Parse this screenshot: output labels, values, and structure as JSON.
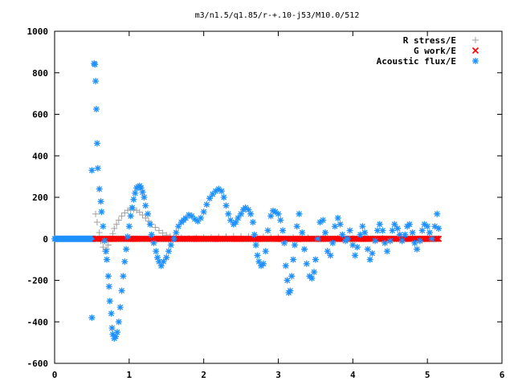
{
  "chart_data": {
    "type": "scatter",
    "title": "m3/n1.5/q1.85/r-+.10-j53/M10.0/512",
    "xlim": [
      0,
      6
    ],
    "ylim": [
      -600,
      1000
    ],
    "x_ticks": [
      "0",
      "1",
      "2",
      "3",
      "4",
      "5",
      "6"
    ],
    "y_ticks": [
      "-600",
      "-400",
      "-200",
      "0",
      "200",
      "400",
      "600",
      "800",
      "1000"
    ],
    "grid": false,
    "legend_position": "top-right",
    "series": [
      {
        "name": "R stress/E",
        "marker": "+",
        "color": "#a0a0a0",
        "points": [
          [
            0.55,
            120
          ],
          [
            0.57,
            80
          ],
          [
            0.6,
            30
          ],
          [
            0.62,
            -10
          ],
          [
            0.65,
            -40
          ],
          [
            0.68,
            -60
          ],
          [
            0.7,
            -50
          ],
          [
            0.72,
            -30
          ],
          [
            0.75,
            0
          ],
          [
            0.78,
            25
          ],
          [
            0.8,
            50
          ],
          [
            0.83,
            70
          ],
          [
            0.86,
            90
          ],
          [
            0.9,
            110
          ],
          [
            0.94,
            125
          ],
          [
            0.98,
            137
          ],
          [
            1.02,
            143
          ],
          [
            1.06,
            142
          ],
          [
            1.1,
            137
          ],
          [
            1.14,
            128
          ],
          [
            1.18,
            115
          ],
          [
            1.22,
            100
          ],
          [
            1.26,
            85
          ],
          [
            1.3,
            70
          ],
          [
            1.35,
            55
          ],
          [
            1.4,
            40
          ],
          [
            1.45,
            28
          ],
          [
            1.5,
            18
          ],
          [
            1.55,
            12
          ],
          [
            1.6,
            8
          ],
          [
            1.7,
            5
          ],
          [
            1.8,
            3
          ],
          [
            1.9,
            5
          ],
          [
            2.0,
            6
          ],
          [
            2.1,
            7
          ],
          [
            2.2,
            9
          ],
          [
            2.3,
            11
          ],
          [
            2.4,
            12
          ],
          [
            2.5,
            12
          ],
          [
            2.6,
            11
          ],
          [
            2.7,
            10
          ],
          [
            2.8,
            9
          ],
          [
            2.9,
            8
          ],
          [
            3.0,
            8
          ],
          [
            3.2,
            7
          ],
          [
            3.4,
            6
          ],
          [
            3.6,
            5
          ],
          [
            3.8,
            4
          ],
          [
            4.0,
            4
          ],
          [
            4.2,
            3
          ],
          [
            4.4,
            3
          ],
          [
            4.6,
            2
          ],
          [
            4.8,
            2
          ],
          [
            5.0,
            2
          ],
          [
            5.15,
            2
          ]
        ]
      },
      {
        "name": "G work/E",
        "marker": "x",
        "color": "#ff0000",
        "x_range": [
          0.55,
          5.15
        ],
        "step": 0.02,
        "y_constant": 0
      },
      {
        "name": "Acoustic flux/E",
        "marker": "*",
        "color": "#1e90ff",
        "dense_zero_x_range": [
          0,
          0.55
        ],
        "points": [
          [
            0.5,
            -380
          ],
          [
            0.5,
            330
          ],
          [
            0.53,
            845
          ],
          [
            0.54,
            840
          ],
          [
            0.55,
            760
          ],
          [
            0.56,
            625
          ],
          [
            0.57,
            460
          ],
          [
            0.58,
            340
          ],
          [
            0.6,
            240
          ],
          [
            0.62,
            180
          ],
          [
            0.63,
            130
          ],
          [
            0.65,
            60
          ],
          [
            0.67,
            -10
          ],
          [
            0.69,
            -60
          ],
          [
            0.7,
            -100
          ],
          [
            0.72,
            -180
          ],
          [
            0.73,
            -230
          ],
          [
            0.74,
            -300
          ],
          [
            0.76,
            -360
          ],
          [
            0.77,
            -430
          ],
          [
            0.78,
            -460
          ],
          [
            0.8,
            -480
          ],
          [
            0.82,
            -470
          ],
          [
            0.84,
            -450
          ],
          [
            0.86,
            -400
          ],
          [
            0.88,
            -330
          ],
          [
            0.9,
            -250
          ],
          [
            0.92,
            -180
          ],
          [
            0.94,
            -110
          ],
          [
            0.96,
            -50
          ],
          [
            0.98,
            10
          ],
          [
            1.0,
            60
          ],
          [
            1.02,
            110
          ],
          [
            1.04,
            150
          ],
          [
            1.06,
            190
          ],
          [
            1.08,
            220
          ],
          [
            1.1,
            245
          ],
          [
            1.12,
            250
          ],
          [
            1.14,
            255
          ],
          [
            1.16,
            245
          ],
          [
            1.18,
            225
          ],
          [
            1.2,
            200
          ],
          [
            1.22,
            160
          ],
          [
            1.25,
            120
          ],
          [
            1.28,
            70
          ],
          [
            1.3,
            20
          ],
          [
            1.33,
            -20
          ],
          [
            1.36,
            -60
          ],
          [
            1.38,
            -90
          ],
          [
            1.4,
            -110
          ],
          [
            1.43,
            -130
          ],
          [
            1.46,
            -110
          ],
          [
            1.5,
            -90
          ],
          [
            1.53,
            -60
          ],
          [
            1.56,
            -30
          ],
          [
            1.6,
            0
          ],
          [
            1.63,
            30
          ],
          [
            1.66,
            60
          ],
          [
            1.7,
            80
          ],
          [
            1.73,
            90
          ],
          [
            1.76,
            100
          ],
          [
            1.8,
            115
          ],
          [
            1.84,
            110
          ],
          [
            1.88,
            95
          ],
          [
            1.92,
            85
          ],
          [
            1.96,
            100
          ],
          [
            2.0,
            130
          ],
          [
            2.04,
            165
          ],
          [
            2.08,
            195
          ],
          [
            2.12,
            215
          ],
          [
            2.16,
            230
          ],
          [
            2.2,
            240
          ],
          [
            2.24,
            230
          ],
          [
            2.27,
            200
          ],
          [
            2.3,
            160
          ],
          [
            2.33,
            120
          ],
          [
            2.36,
            90
          ],
          [
            2.4,
            70
          ],
          [
            2.43,
            80
          ],
          [
            2.46,
            100
          ],
          [
            2.5,
            120
          ],
          [
            2.53,
            140
          ],
          [
            2.56,
            150
          ],
          [
            2.6,
            140
          ],
          [
            2.63,
            120
          ],
          [
            2.66,
            80
          ],
          [
            2.68,
            20
          ],
          [
            2.7,
            -30
          ],
          [
            2.72,
            -80
          ],
          [
            2.74,
            -110
          ],
          [
            2.77,
            -130
          ],
          [
            2.8,
            -120
          ],
          [
            2.83,
            -60
          ],
          [
            2.86,
            40
          ],
          [
            2.9,
            110
          ],
          [
            2.93,
            135
          ],
          [
            2.96,
            130
          ],
          [
            3.0,
            120
          ],
          [
            3.03,
            90
          ],
          [
            3.06,
            40
          ],
          [
            3.08,
            -20
          ],
          [
            3.1,
            -130
          ],
          [
            3.12,
            -200
          ],
          [
            3.14,
            -260
          ],
          [
            3.16,
            -250
          ],
          [
            3.18,
            -180
          ],
          [
            3.2,
            -100
          ],
          [
            3.22,
            -30
          ],
          [
            3.25,
            60
          ],
          [
            3.28,
            120
          ],
          [
            3.32,
            30
          ],
          [
            3.35,
            -50
          ],
          [
            3.38,
            -120
          ],
          [
            3.42,
            -180
          ],
          [
            3.45,
            -190
          ],
          [
            3.48,
            -160
          ],
          [
            3.5,
            -100
          ],
          [
            3.53,
            0
          ],
          [
            3.56,
            80
          ],
          [
            3.6,
            90
          ],
          [
            3.63,
            30
          ],
          [
            3.66,
            -60
          ],
          [
            3.7,
            -80
          ],
          [
            3.73,
            -20
          ],
          [
            3.76,
            60
          ],
          [
            3.8,
            100
          ],
          [
            3.83,
            70
          ],
          [
            3.86,
            20
          ],
          [
            3.9,
            -10
          ],
          [
            3.93,
            0
          ],
          [
            3.96,
            40
          ],
          [
            4.0,
            -30
          ],
          [
            4.03,
            -80
          ],
          [
            4.06,
            -40
          ],
          [
            4.1,
            20
          ],
          [
            4.13,
            60
          ],
          [
            4.16,
            30
          ],
          [
            4.2,
            -50
          ],
          [
            4.23,
            -100
          ],
          [
            4.26,
            -70
          ],
          [
            4.3,
            -10
          ],
          [
            4.33,
            40
          ],
          [
            4.36,
            70
          ],
          [
            4.4,
            40
          ],
          [
            4.43,
            -20
          ],
          [
            4.46,
            -60
          ],
          [
            4.5,
            -10
          ],
          [
            4.53,
            40
          ],
          [
            4.56,
            70
          ],
          [
            4.6,
            50
          ],
          [
            4.63,
            20
          ],
          [
            4.66,
            -10
          ],
          [
            4.7,
            20
          ],
          [
            4.73,
            60
          ],
          [
            4.76,
            70
          ],
          [
            4.8,
            30
          ],
          [
            4.83,
            -20
          ],
          [
            4.86,
            -50
          ],
          [
            4.9,
            -10
          ],
          [
            4.93,
            40
          ],
          [
            4.96,
            70
          ],
          [
            5.0,
            60
          ],
          [
            5.03,
            30
          ],
          [
            5.06,
            0
          ],
          [
            5.1,
            60
          ],
          [
            5.13,
            120
          ],
          [
            5.15,
            50
          ]
        ]
      }
    ]
  }
}
